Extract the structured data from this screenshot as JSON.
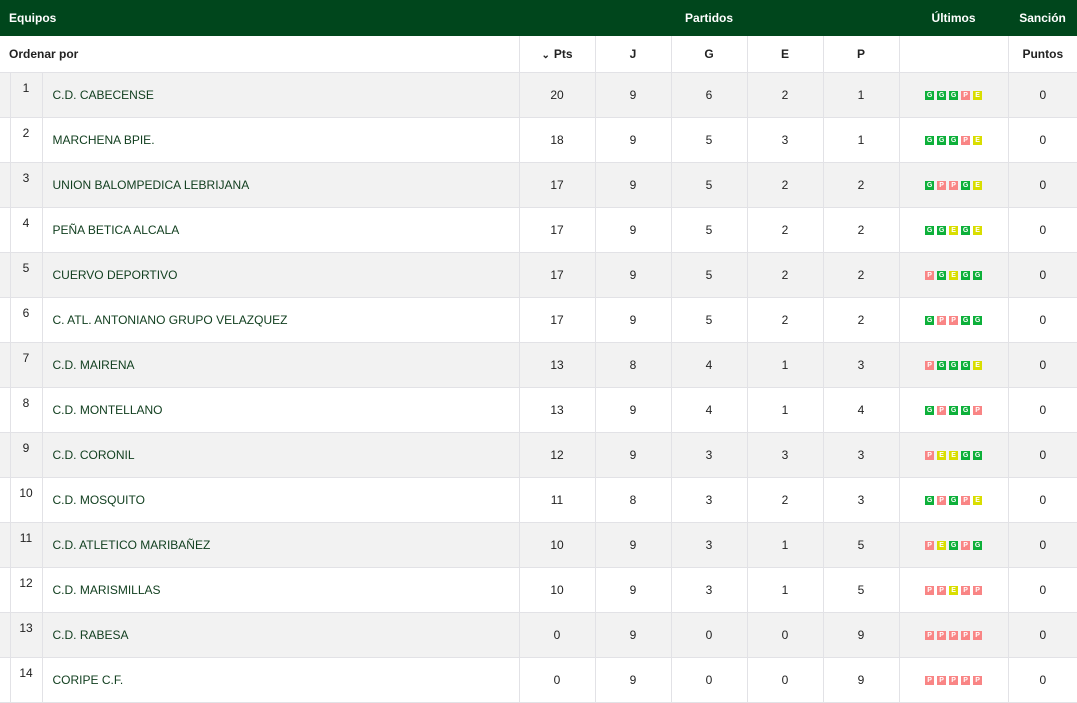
{
  "header": {
    "equipos": "Equipos",
    "partidos": "Partidos",
    "ultimos": "Últimos",
    "sancion": "Sanción"
  },
  "subheader": {
    "ordenar": "Ordenar por",
    "pts": "Pts",
    "j": "J",
    "g": "G",
    "e": "E",
    "p": "P",
    "puntos": "Puntos",
    "sort_icon": "chevron-down"
  },
  "colors": {
    "header_bg": "#00461c",
    "win": "#0db03a",
    "loss": "#f98585",
    "draw": "#d9de00"
  },
  "rows": [
    {
      "rank": "1",
      "team": "C.D. CABECENSE",
      "pts": "20",
      "j": "9",
      "g": "6",
      "e": "2",
      "p": "1",
      "last": [
        "G",
        "G",
        "G",
        "P",
        "E"
      ],
      "puntos": "0"
    },
    {
      "rank": "2",
      "team": "MARCHENA BPIE.",
      "pts": "18",
      "j": "9",
      "g": "5",
      "e": "3",
      "p": "1",
      "last": [
        "G",
        "G",
        "G",
        "P",
        "E"
      ],
      "puntos": "0"
    },
    {
      "rank": "3",
      "team": "UNION BALOMPEDICA LEBRIJANA",
      "pts": "17",
      "j": "9",
      "g": "5",
      "e": "2",
      "p": "2",
      "last": [
        "G",
        "P",
        "P",
        "G",
        "E"
      ],
      "puntos": "0"
    },
    {
      "rank": "4",
      "team": "PEÑA BETICA ALCALA",
      "pts": "17",
      "j": "9",
      "g": "5",
      "e": "2",
      "p": "2",
      "last": [
        "G",
        "G",
        "E",
        "G",
        "E"
      ],
      "puntos": "0"
    },
    {
      "rank": "5",
      "team": "CUERVO DEPORTIVO",
      "pts": "17",
      "j": "9",
      "g": "5",
      "e": "2",
      "p": "2",
      "last": [
        "P",
        "G",
        "E",
        "G",
        "G"
      ],
      "puntos": "0"
    },
    {
      "rank": "6",
      "team": "C. ATL. ANTONIANO GRUPO VELAZQUEZ",
      "pts": "17",
      "j": "9",
      "g": "5",
      "e": "2",
      "p": "2",
      "last": [
        "G",
        "P",
        "P",
        "G",
        "G"
      ],
      "puntos": "0"
    },
    {
      "rank": "7",
      "team": "C.D. MAIRENA",
      "pts": "13",
      "j": "8",
      "g": "4",
      "e": "1",
      "p": "3",
      "last": [
        "P",
        "G",
        "G",
        "G",
        "E"
      ],
      "puntos": "0"
    },
    {
      "rank": "8",
      "team": "C.D. MONTELLANO",
      "pts": "13",
      "j": "9",
      "g": "4",
      "e": "1",
      "p": "4",
      "last": [
        "G",
        "P",
        "G",
        "G",
        "P"
      ],
      "puntos": "0"
    },
    {
      "rank": "9",
      "team": "C.D. CORONIL",
      "pts": "12",
      "j": "9",
      "g": "3",
      "e": "3",
      "p": "3",
      "last": [
        "P",
        "E",
        "E",
        "G",
        "G"
      ],
      "puntos": "0"
    },
    {
      "rank": "10",
      "team": "C.D. MOSQUITO",
      "pts": "11",
      "j": "8",
      "g": "3",
      "e": "2",
      "p": "3",
      "last": [
        "G",
        "P",
        "G",
        "P",
        "E"
      ],
      "puntos": "0"
    },
    {
      "rank": "11",
      "team": "C.D. ATLETICO MARIBAÑEZ",
      "pts": "10",
      "j": "9",
      "g": "3",
      "e": "1",
      "p": "5",
      "last": [
        "P",
        "E",
        "G",
        "P",
        "G"
      ],
      "puntos": "0"
    },
    {
      "rank": "12",
      "team": "C.D. MARISMILLAS",
      "pts": "10",
      "j": "9",
      "g": "3",
      "e": "1",
      "p": "5",
      "last": [
        "P",
        "P",
        "E",
        "P",
        "P"
      ],
      "puntos": "0"
    },
    {
      "rank": "13",
      "team": "C.D. RABESA",
      "pts": "0",
      "j": "9",
      "g": "0",
      "e": "0",
      "p": "9",
      "last": [
        "P",
        "P",
        "P",
        "P",
        "P"
      ],
      "puntos": "0"
    },
    {
      "rank": "14",
      "team": "CORIPE C.F.",
      "pts": "0",
      "j": "9",
      "g": "0",
      "e": "0",
      "p": "9",
      "last": [
        "P",
        "P",
        "P",
        "P",
        "P"
      ],
      "puntos": "0"
    }
  ]
}
